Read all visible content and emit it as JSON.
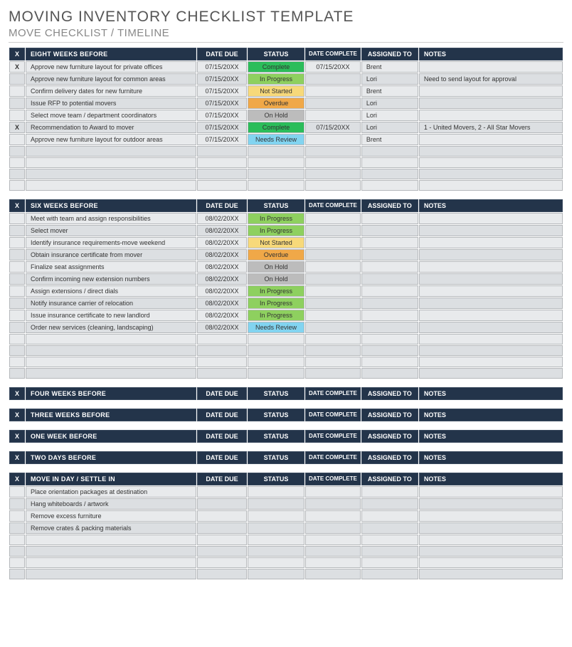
{
  "title": "MOVING INVENTORY CHECKLIST TEMPLATE",
  "subtitle": "MOVE CHECKLIST / TIMELINE",
  "columns": {
    "x": "X",
    "task": "",
    "due": "DATE DUE",
    "status": "STATUS",
    "complete": "DATE COMPLETE",
    "assigned": "ASSIGNED TO",
    "notes": "NOTES"
  },
  "statusColors": {
    "Complete": "#2bbd5a",
    "In Progress": "#8ed05f",
    "Not Started": "#f7d97a",
    "Overdue": "#f0a848",
    "On Hold": "#bcbcbc",
    "Needs Review": "#82d4f0"
  },
  "sections": [
    {
      "name": "EIGHT WEEKS BEFORE",
      "emptyRows": 4,
      "rows": [
        {
          "x": "X",
          "task": "Approve new furniture layout for private offices",
          "due": "07/15/20XX",
          "status": "Complete",
          "complete": "07/15/20XX",
          "assigned": "Brent",
          "notes": ""
        },
        {
          "x": "",
          "task": "Approve new furniture layout for common areas",
          "due": "07/15/20XX",
          "status": "In Progress",
          "complete": "",
          "assigned": "Lori",
          "notes": "Need to send layout for approval"
        },
        {
          "x": "",
          "task": "Confirm delivery dates for new furniture",
          "due": "07/15/20XX",
          "status": "Not Started",
          "complete": "",
          "assigned": "Brent",
          "notes": ""
        },
        {
          "x": "",
          "task": "Issue RFP to potential movers",
          "due": "07/15/20XX",
          "status": "Overdue",
          "complete": "",
          "assigned": "Lori",
          "notes": ""
        },
        {
          "x": "",
          "task": "Select move team / department coordinators",
          "due": "07/15/20XX",
          "status": "On Hold",
          "complete": "",
          "assigned": "Lori",
          "notes": ""
        },
        {
          "x": "X",
          "task": "Recommendation to Award to mover",
          "due": "07/15/20XX",
          "status": "Complete",
          "complete": "07/15/20XX",
          "assigned": "Lori",
          "notes": "1 - United Movers, 2 - All Star Movers"
        },
        {
          "x": "",
          "task": "Approve new furniture layout for outdoor areas",
          "due": "07/15/20XX",
          "status": "Needs Review",
          "complete": "",
          "assigned": "Brent",
          "notes": ""
        }
      ]
    },
    {
      "name": "SIX WEEKS BEFORE",
      "emptyRows": 4,
      "rows": [
        {
          "x": "",
          "task": "Meet with team and assign responsibilities",
          "due": "08/02/20XX",
          "status": "In Progress",
          "complete": "",
          "assigned": "",
          "notes": ""
        },
        {
          "x": "",
          "task": "Select mover",
          "due": "08/02/20XX",
          "status": "In Progress",
          "complete": "",
          "assigned": "",
          "notes": ""
        },
        {
          "x": "",
          "task": "Identify insurance requirements-move weekend",
          "due": "08/02/20XX",
          "status": "Not Started",
          "complete": "",
          "assigned": "",
          "notes": ""
        },
        {
          "x": "",
          "task": "Obtain insurance certificate from mover",
          "due": "08/02/20XX",
          "status": "Overdue",
          "complete": "",
          "assigned": "",
          "notes": ""
        },
        {
          "x": "",
          "task": "Finalize seat assignments",
          "due": "08/02/20XX",
          "status": "On Hold",
          "complete": "",
          "assigned": "",
          "notes": ""
        },
        {
          "x": "",
          "task": "Confirm incoming new extension numbers",
          "due": "08/02/20XX",
          "status": "On Hold",
          "complete": "",
          "assigned": "",
          "notes": ""
        },
        {
          "x": "",
          "task": "Assign extensions / direct dials",
          "due": "08/02/20XX",
          "status": "In Progress",
          "complete": "",
          "assigned": "",
          "notes": ""
        },
        {
          "x": "",
          "task": "Notify insurance carrier of relocation",
          "due": "08/02/20XX",
          "status": "In Progress",
          "complete": "",
          "assigned": "",
          "notes": ""
        },
        {
          "x": "",
          "task": "Issue insurance certificate to new landlord",
          "due": "08/02/20XX",
          "status": "In Progress",
          "complete": "",
          "assigned": "",
          "notes": ""
        },
        {
          "x": "",
          "task": "Order new services (cleaning, landscaping)",
          "due": "08/02/20XX",
          "status": "Needs Review",
          "complete": "",
          "assigned": "",
          "notes": ""
        }
      ]
    },
    {
      "name": "FOUR WEEKS BEFORE",
      "emptyRows": 0,
      "rows": []
    },
    {
      "name": "THREE WEEKS BEFORE",
      "emptyRows": 0,
      "rows": []
    },
    {
      "name": "ONE WEEK BEFORE",
      "emptyRows": 0,
      "rows": []
    },
    {
      "name": "TWO DAYS BEFORE",
      "emptyRows": 0,
      "rows": []
    },
    {
      "name": "MOVE IN DAY / SETTLE IN",
      "emptyRows": 4,
      "rows": [
        {
          "x": "",
          "task": "Place orientation packages at destination",
          "due": "",
          "status": "",
          "complete": "",
          "assigned": "",
          "notes": ""
        },
        {
          "x": "",
          "task": "Hang whiteboards / artwork",
          "due": "",
          "status": "",
          "complete": "",
          "assigned": "",
          "notes": ""
        },
        {
          "x": "",
          "task": "Remove excess furniture",
          "due": "",
          "status": "",
          "complete": "",
          "assigned": "",
          "notes": ""
        },
        {
          "x": "",
          "task": "Remove crates & packing materials",
          "due": "",
          "status": "",
          "complete": "",
          "assigned": "",
          "notes": ""
        }
      ]
    }
  ]
}
